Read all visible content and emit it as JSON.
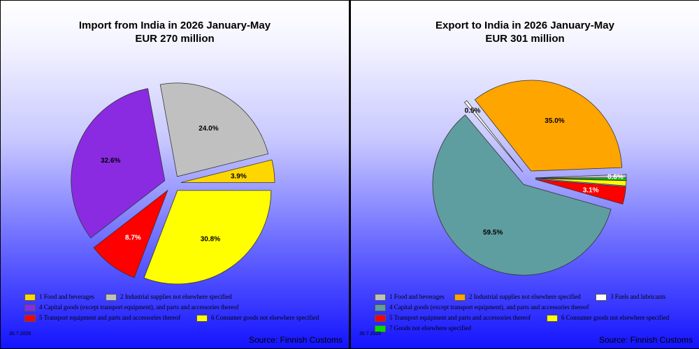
{
  "chart_data": [
    {
      "type": "pie",
      "title": "Import from India in 2026 January-May",
      "subtitle": "EUR   270 million",
      "categories": [
        "1 Food and beverages",
        "2 Industrial supplies not elsewhere specified",
        "4 Capital goods (except transport equipment), and parts and accessories thereof",
        "5  Transport equipment and parts and accessories thereof",
        "6 Consumer goods not elsewhere specified"
      ],
      "values": [
        3.9,
        24.0,
        32.6,
        8.7,
        30.8
      ],
      "value_labels": [
        "3.9%",
        "24.0%",
        "32.6%",
        "8.7%",
        "30.8%"
      ],
      "colors": [
        "#ffd700",
        "#c0c0c0",
        "#8a2be2",
        "#ff0000",
        "#ffff00"
      ],
      "label_colors": [
        "#000000",
        "#000000",
        "#000000",
        "#ffffff",
        "#000000"
      ],
      "start_angle_deg": 0,
      "direction": "counterclockwise",
      "exploded": true,
      "legend_position": "bottom",
      "date": "30.7.2026",
      "source": "Source: Finnish Customs"
    },
    {
      "type": "pie",
      "title": "Export to India in 2026 January-May",
      "subtitle": "EUR   301 million",
      "categories": [
        "1 Food and beverages",
        "2 Industrial supplies not elsewhere specified",
        "3 Fuels and lubricants",
        "4 Capital goods (except transport equipment), and parts and accessories thereof",
        "5  Transport equipment and parts and accessories thereof",
        "6 Consumer goods not elsewhere specified",
        "7 Goods not elsewhere specified"
      ],
      "values": [
        0.6,
        35.0,
        0.5,
        59.5,
        3.1,
        0.9,
        0.4
      ],
      "value_labels": [
        "0.6%",
        "35.0%",
        "0.5%",
        "59.5%",
        "3.1%",
        "",
        ""
      ],
      "colors": [
        "#c0c0c0",
        "#ffa500",
        "#ffffff",
        "#5f9ea0",
        "#ff0000",
        "#ffff00",
        "#00dd00"
      ],
      "label_colors": [
        "#ffffff",
        "#000000",
        "#000000",
        "#000000",
        "#ffffff",
        "#ffffff",
        "#ffffff"
      ],
      "start_angle_deg": 0,
      "direction": "counterclockwise",
      "exploded": true,
      "legend_position": "bottom",
      "date": "30.7.2026",
      "source": "Source: Finnish Customs"
    }
  ]
}
